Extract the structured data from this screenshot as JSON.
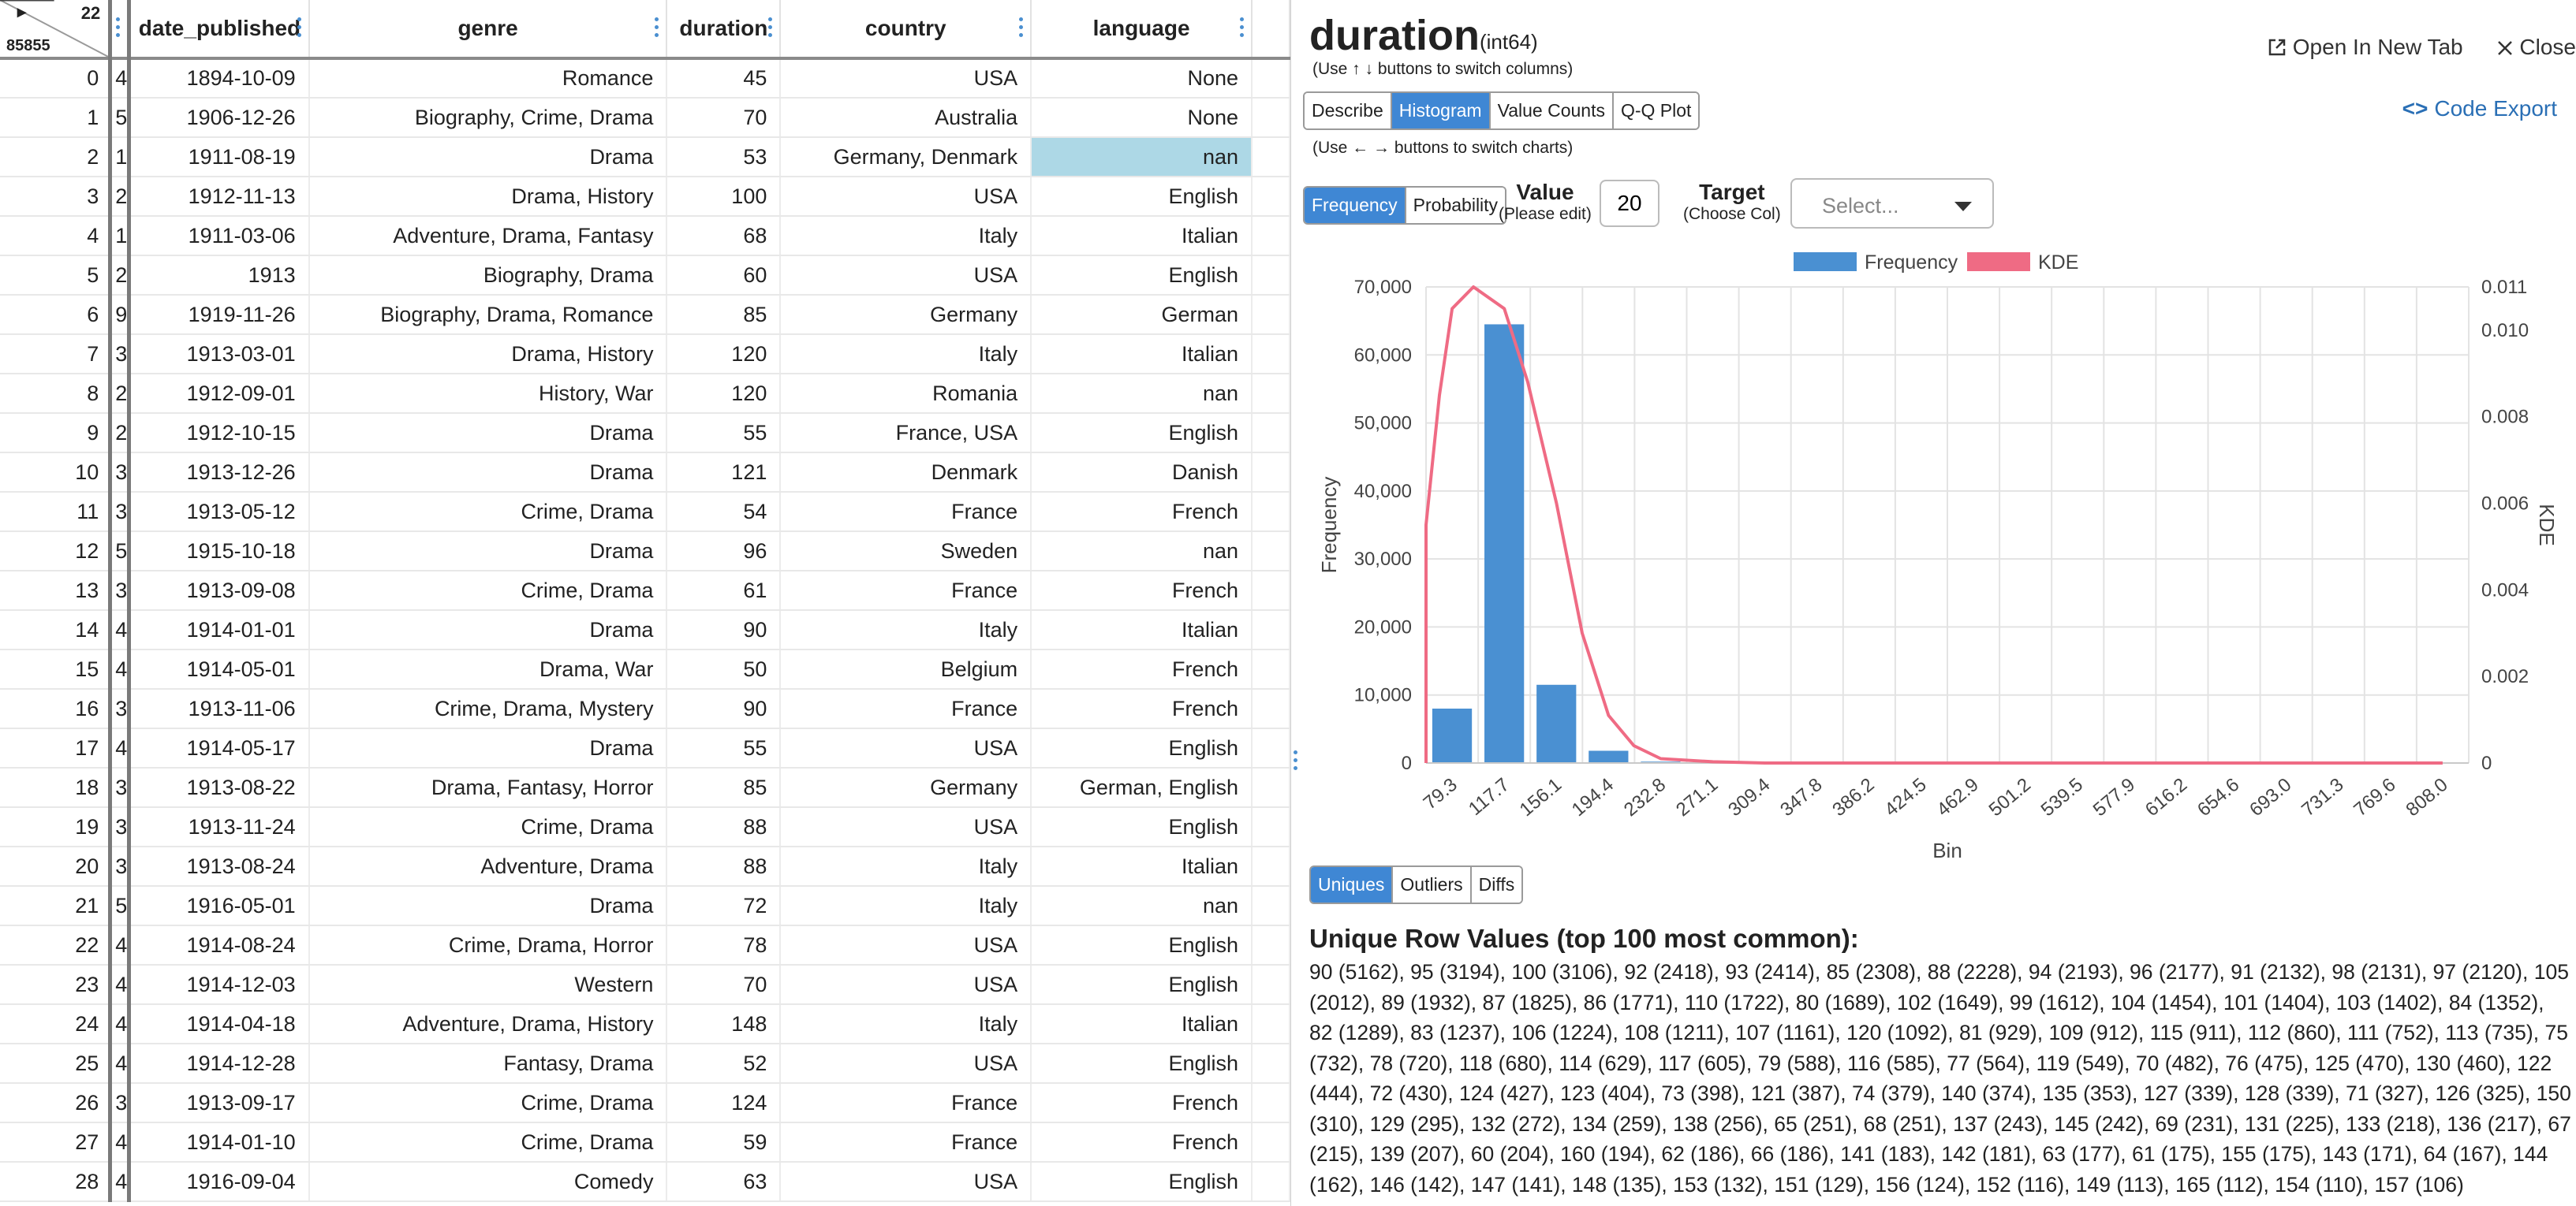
{
  "grid": {
    "corner": {
      "toggle": "▸",
      "count_top": "22",
      "count_bottom": "85855"
    },
    "columns": [
      "date_published",
      "genre",
      "duration",
      "country",
      "language"
    ],
    "rows": [
      {
        "idx": "0",
        "clip": "4",
        "date": "1894-10-09",
        "genre": "Romance",
        "duration": "45",
        "country": "USA",
        "language": "None"
      },
      {
        "idx": "1",
        "clip": "5",
        "date": "1906-12-26",
        "genre": "Biography, Crime, Drama",
        "duration": "70",
        "country": "Australia",
        "language": "None"
      },
      {
        "idx": "2",
        "clip": "1",
        "date": "1911-08-19",
        "genre": "Drama",
        "duration": "53",
        "country": "Germany, Denmark",
        "language": "nan"
      },
      {
        "idx": "3",
        "clip": "2",
        "date": "1912-11-13",
        "genre": "Drama, History",
        "duration": "100",
        "country": "USA",
        "language": "English"
      },
      {
        "idx": "4",
        "clip": "1",
        "date": "1911-03-06",
        "genre": "Adventure, Drama, Fantasy",
        "duration": "68",
        "country": "Italy",
        "language": "Italian"
      },
      {
        "idx": "5",
        "clip": "2",
        "date": "1913",
        "genre": "Biography, Drama",
        "duration": "60",
        "country": "USA",
        "language": "English"
      },
      {
        "idx": "6",
        "clip": "9",
        "date": "1919-11-26",
        "genre": "Biography, Drama, Romance",
        "duration": "85",
        "country": "Germany",
        "language": "German"
      },
      {
        "idx": "7",
        "clip": "3",
        "date": "1913-03-01",
        "genre": "Drama, History",
        "duration": "120",
        "country": "Italy",
        "language": "Italian"
      },
      {
        "idx": "8",
        "clip": "2",
        "date": "1912-09-01",
        "genre": "History, War",
        "duration": "120",
        "country": "Romania",
        "language": "nan"
      },
      {
        "idx": "9",
        "clip": "2",
        "date": "1912-10-15",
        "genre": "Drama",
        "duration": "55",
        "country": "France, USA",
        "language": "English"
      },
      {
        "idx": "10",
        "clip": "3",
        "date": "1913-12-26",
        "genre": "Drama",
        "duration": "121",
        "country": "Denmark",
        "language": "Danish"
      },
      {
        "idx": "11",
        "clip": "3",
        "date": "1913-05-12",
        "genre": "Crime, Drama",
        "duration": "54",
        "country": "France",
        "language": "French"
      },
      {
        "idx": "12",
        "clip": "5",
        "date": "1915-10-18",
        "genre": "Drama",
        "duration": "96",
        "country": "Sweden",
        "language": "nan"
      },
      {
        "idx": "13",
        "clip": "3",
        "date": "1913-09-08",
        "genre": "Crime, Drama",
        "duration": "61",
        "country": "France",
        "language": "French"
      },
      {
        "idx": "14",
        "clip": "4",
        "date": "1914-01-01",
        "genre": "Drama",
        "duration": "90",
        "country": "Italy",
        "language": "Italian"
      },
      {
        "idx": "15",
        "clip": "4",
        "date": "1914-05-01",
        "genre": "Drama, War",
        "duration": "50",
        "country": "Belgium",
        "language": "French"
      },
      {
        "idx": "16",
        "clip": "3",
        "date": "1913-11-06",
        "genre": "Crime, Drama, Mystery",
        "duration": "90",
        "country": "France",
        "language": "French"
      },
      {
        "idx": "17",
        "clip": "4",
        "date": "1914-05-17",
        "genre": "Drama",
        "duration": "55",
        "country": "USA",
        "language": "English"
      },
      {
        "idx": "18",
        "clip": "3",
        "date": "1913-08-22",
        "genre": "Drama, Fantasy, Horror",
        "duration": "85",
        "country": "Germany",
        "language": "German, English"
      },
      {
        "idx": "19",
        "clip": "3",
        "date": "1913-11-24",
        "genre": "Crime, Drama",
        "duration": "88",
        "country": "USA",
        "language": "English"
      },
      {
        "idx": "20",
        "clip": "3",
        "date": "1913-08-24",
        "genre": "Adventure, Drama",
        "duration": "88",
        "country": "Italy",
        "language": "Italian"
      },
      {
        "idx": "21",
        "clip": "5",
        "date": "1916-05-01",
        "genre": "Drama",
        "duration": "72",
        "country": "Italy",
        "language": "nan"
      },
      {
        "idx": "22",
        "clip": "4",
        "date": "1914-08-24",
        "genre": "Crime, Drama, Horror",
        "duration": "78",
        "country": "USA",
        "language": "English"
      },
      {
        "idx": "23",
        "clip": "4",
        "date": "1914-12-03",
        "genre": "Western",
        "duration": "70",
        "country": "USA",
        "language": "English"
      },
      {
        "idx": "24",
        "clip": "4",
        "date": "1914-04-18",
        "genre": "Adventure, Drama, History",
        "duration": "148",
        "country": "Italy",
        "language": "Italian"
      },
      {
        "idx": "25",
        "clip": "4",
        "date": "1914-12-28",
        "genre": "Fantasy, Drama",
        "duration": "52",
        "country": "USA",
        "language": "English"
      },
      {
        "idx": "26",
        "clip": "3",
        "date": "1913-09-17",
        "genre": "Crime, Drama",
        "duration": "124",
        "country": "France",
        "language": "French"
      },
      {
        "idx": "27",
        "clip": "4",
        "date": "1914-01-10",
        "genre": "Crime, Drama",
        "duration": "59",
        "country": "France",
        "language": "French"
      },
      {
        "idx": "28",
        "clip": "4",
        "date": "1916-09-04",
        "genre": "Comedy",
        "duration": "63",
        "country": "USA",
        "language": "English"
      }
    ]
  },
  "panel": {
    "column_name": "duration",
    "dtype": "(int64)",
    "hint_columns": "(Use ↑ ↓ buttons to switch columns)",
    "hint_charts": "(Use ← → buttons to switch charts)",
    "open_new_tab": "Open In New Tab",
    "close": "Close",
    "code_export": "Code Export",
    "tabs": [
      "Describe",
      "Histogram",
      "Value Counts",
      "Q-Q Plot"
    ],
    "active_tab": "Histogram",
    "mode_buttons": [
      "Frequency",
      "Probability"
    ],
    "active_mode": "Frequency",
    "value_label": "Value",
    "value_sublabel": "(Please edit)",
    "value_input": "20",
    "target_label": "Target",
    "target_sublabel": "(Choose Col)",
    "target_placeholder": "Select...",
    "bottom_tabs": [
      "Uniques",
      "Outliers",
      "Diffs"
    ],
    "active_bottom_tab": "Uniques",
    "uniques_title": "Unique Row Values (top 100 most common):",
    "uniques_text": "90 (5162), 95 (3194), 100 (3106), 92 (2418), 93 (2414), 85 (2308), 88 (2228), 94 (2193), 96 (2177), 91 (2132), 98 (2131), 97 (2120), 105 (2012), 89 (1932), 87 (1825), 86 (1771), 110 (1722), 80 (1689), 102 (1649), 99 (1612), 104 (1454), 101 (1404), 103 (1402), 84 (1352), 82 (1289), 83 (1237), 106 (1224), 108 (1211), 107 (1161), 120 (1092), 81 (929), 109 (912), 115 (911), 112 (860), 111 (752), 113 (735), 75 (732), 78 (720), 118 (680), 114 (629), 117 (605), 79 (588), 116 (585), 77 (564), 119 (549), 70 (482), 76 (475), 125 (470), 130 (460), 122 (444), 72 (430), 124 (427), 123 (404), 73 (398), 121 (387), 74 (379), 140 (374), 135 (353), 127 (339), 128 (339), 71 (327), 126 (325), 150 (310), 129 (295), 132 (272), 134 (259), 138 (256), 65 (251), 68 (251), 137 (243), 145 (242), 69 (231), 131 (225), 133 (218), 136 (217), 67 (215), 139 (207), 60 (204), 160 (194), 62 (186), 66 (186), 141 (183), 142 (181), 63 (177), 61 (175), 155 (175), 143 (171), 64 (167), 144 (162), 146 (142), 147 (141), 148 (135), 153 (132), 151 (129), 156 (124), 152 (116), 149 (113), 165 (112), 154 (110), 157 (106)"
  },
  "chart_data": {
    "type": "bar",
    "xlabel": "Bin",
    "ylabel": "Frequency",
    "y2label": "KDE",
    "legend": [
      "Frequency",
      "KDE"
    ],
    "legend_position": "top-center",
    "grid": true,
    "ylim": [
      0,
      70000
    ],
    "y2lim": [
      0,
      0.011
    ],
    "yticks": [
      "0",
      "10,000",
      "20,000",
      "30,000",
      "40,000",
      "50,000",
      "60,000",
      "70,000"
    ],
    "y2ticks": [
      "0",
      "0.002",
      "0.004",
      "0.006",
      "0.008",
      "0.010",
      "0.011"
    ],
    "categories": [
      "79.3",
      "117.7",
      "156.1",
      "194.4",
      "232.8",
      "271.1",
      "309.4",
      "347.8",
      "386.2",
      "424.5",
      "462.9",
      "501.2",
      "539.5",
      "577.9",
      "616.2",
      "654.6",
      "693.0",
      "731.3",
      "769.6",
      "808.0"
    ],
    "values": [
      8000,
      64500,
      11500,
      1800,
      200,
      60,
      30,
      20,
      10,
      10,
      5,
      5,
      5,
      10,
      5,
      5,
      5,
      5,
      5,
      5
    ],
    "kde_x": [
      41,
      55,
      60,
      70,
      79.3,
      95,
      117.7,
      135,
      156.1,
      175,
      194.4,
      213,
      232.8,
      271.1,
      309.4,
      808.0
    ],
    "kde_y": [
      0.0,
      0.003,
      0.0055,
      0.0085,
      0.0105,
      0.011,
      0.0105,
      0.0088,
      0.006,
      0.003,
      0.0011,
      0.0004,
      0.0001,
      3e-05,
      0.0,
      0.0
    ],
    "colors": {
      "bar": "#4a90d2",
      "kde": "#ef6b84"
    }
  }
}
